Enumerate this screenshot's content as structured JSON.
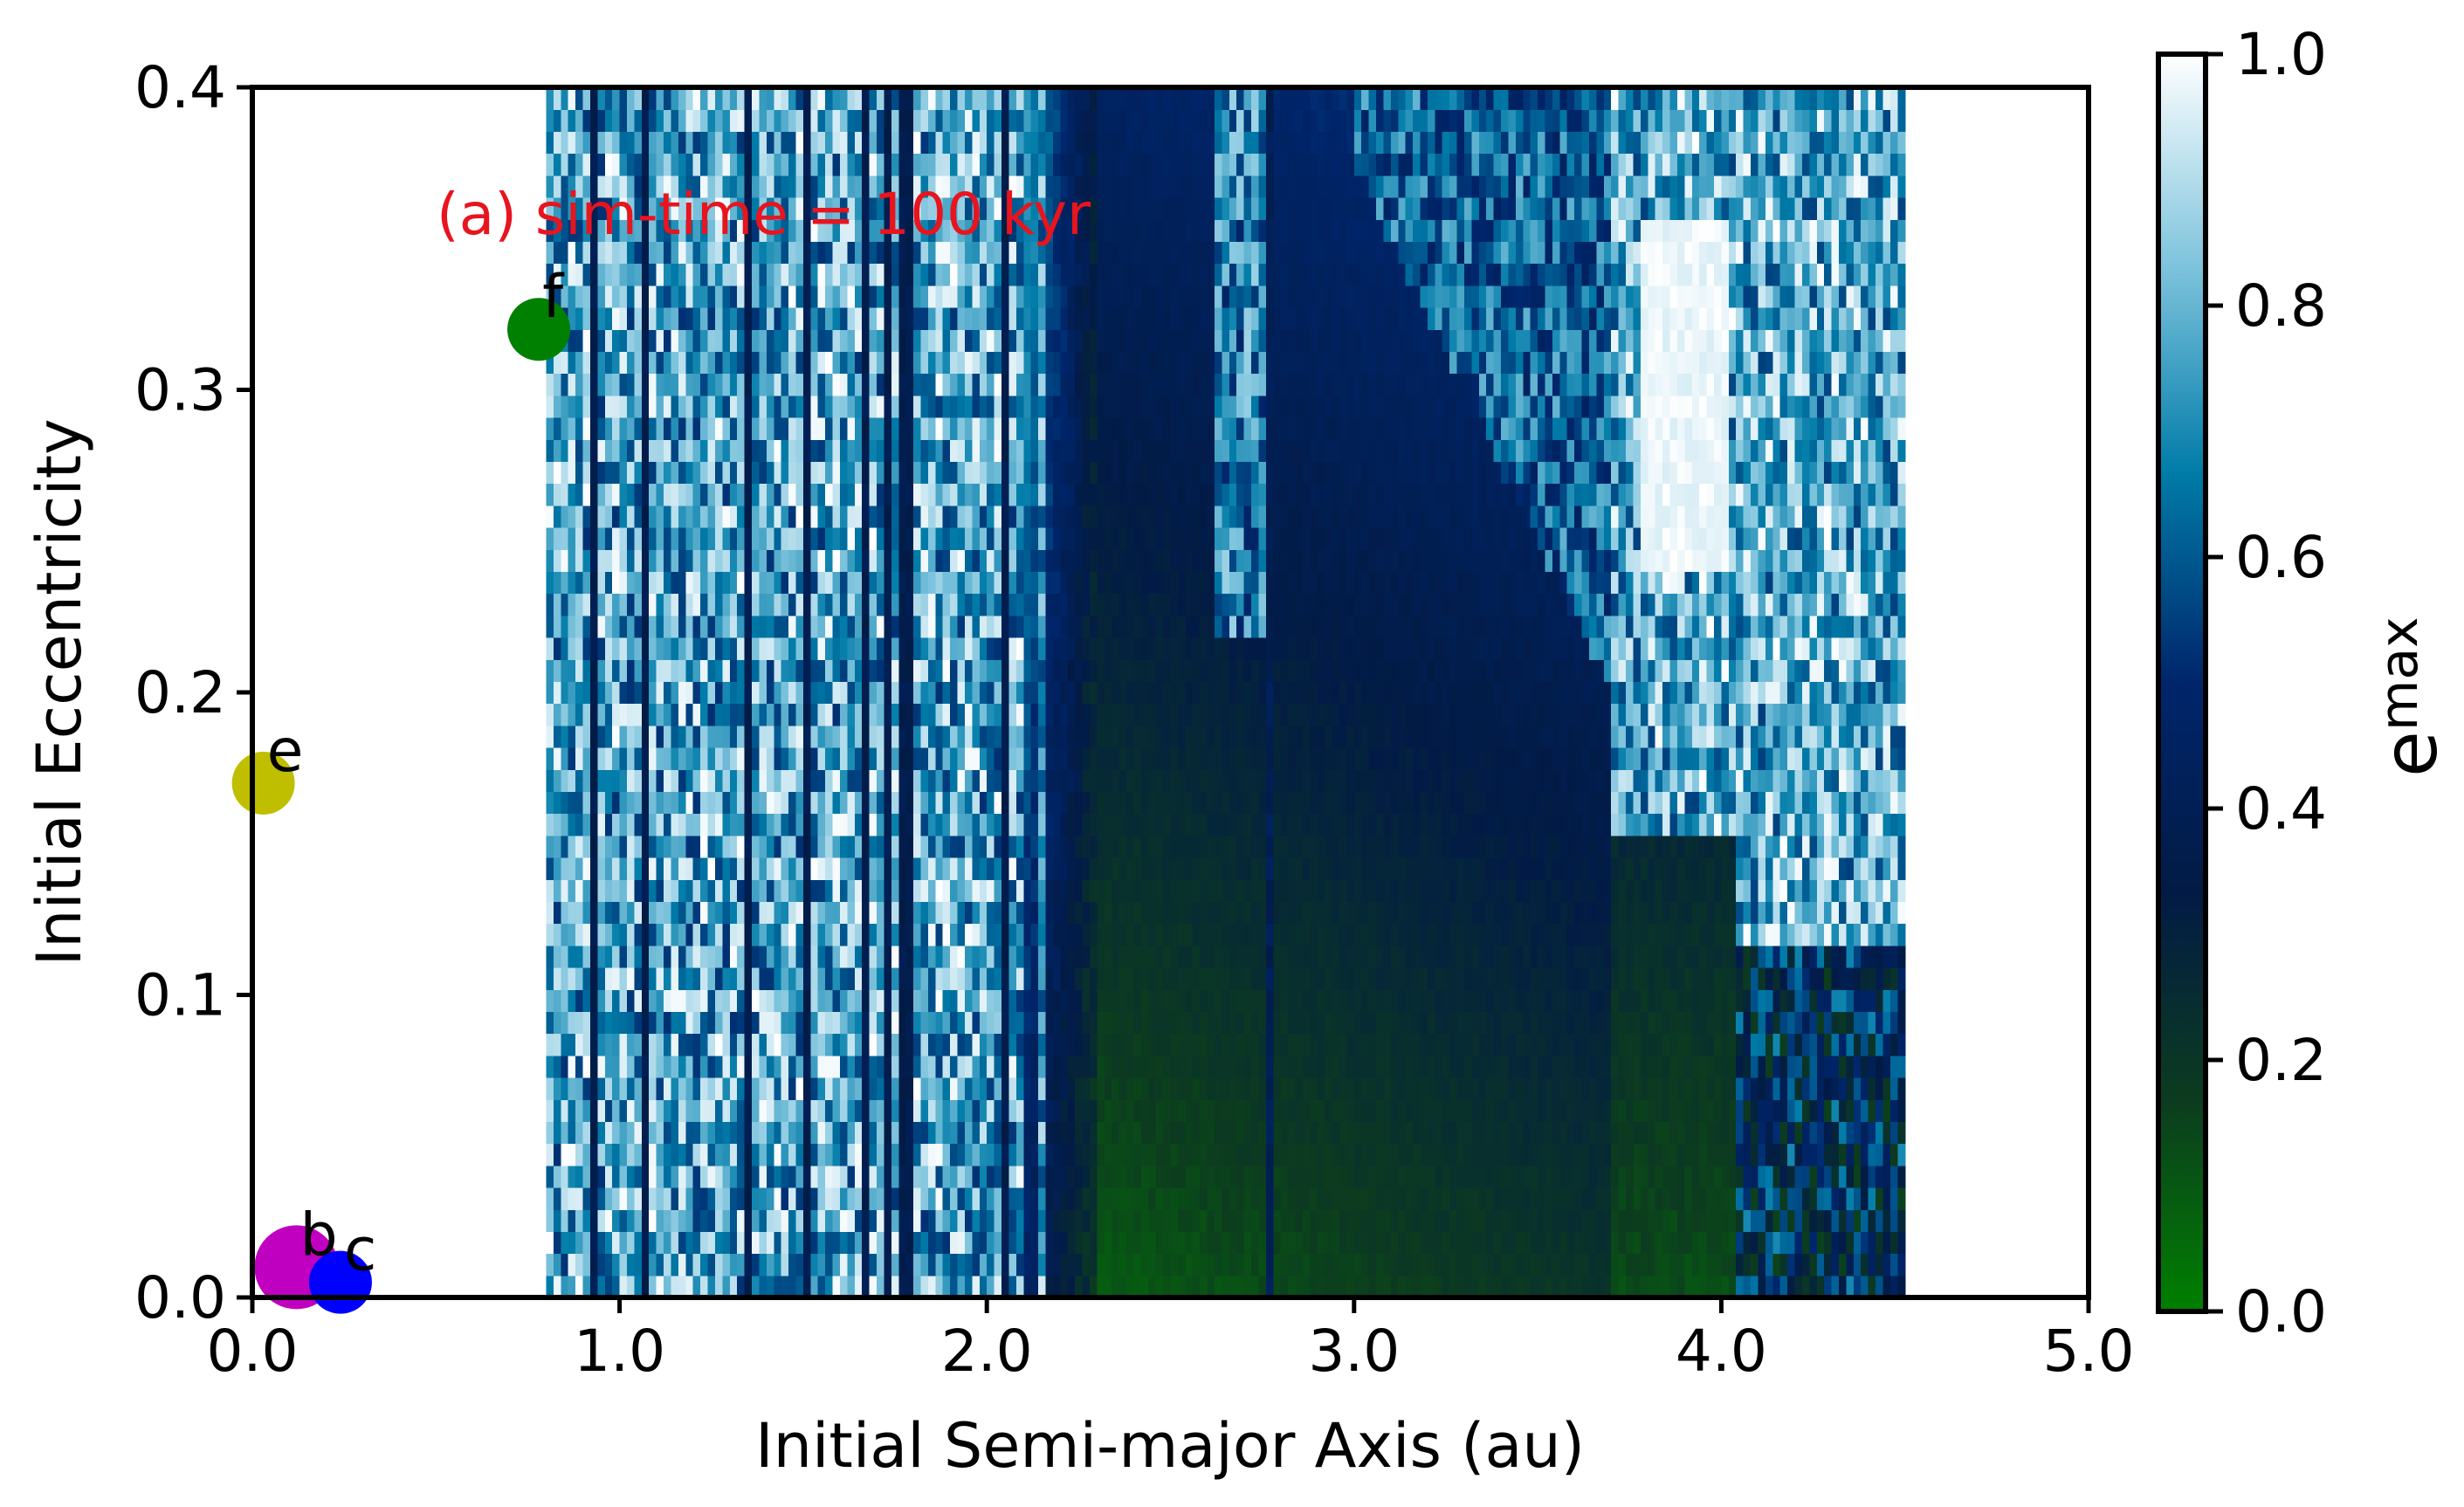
{
  "chart_data": {
    "type": "heatmap",
    "annotation": "(a) sim-time = 100 kyr",
    "xlabel": "Initial Semi-major Axis (au)",
    "ylabel": "Initial Eccentricity",
    "xlim": [
      0.0,
      5.0
    ],
    "ylim": [
      0.0,
      0.4
    ],
    "xticks": [
      "0.0",
      "1.0",
      "2.0",
      "3.0",
      "4.0",
      "5.0"
    ],
    "xtick_values": [
      0,
      1,
      2,
      3,
      4,
      5
    ],
    "yticks": [
      "0.0",
      "0.1",
      "0.2",
      "0.3",
      "0.4"
    ],
    "ytick_values": [
      0,
      0.1,
      0.2,
      0.3,
      0.4
    ],
    "colorbar": {
      "label": "e",
      "label_sub": "max",
      "range": [
        0.0,
        1.0
      ],
      "ticks": [
        "0.0",
        "0.2",
        "0.4",
        "0.6",
        "0.8",
        "1.0"
      ],
      "tick_values": [
        0,
        0.2,
        0.4,
        0.6,
        0.8,
        1.0
      ],
      "colormap": [
        "#008000",
        "#0c3c1f",
        "#021b45",
        "#00256b",
        "#007ba8",
        "#7fc4dd",
        "#ffffff"
      ]
    },
    "grid_extent": {
      "a_min": 0.8,
      "a_max": 4.5,
      "e_min": 0.0,
      "e_max": 0.4
    },
    "regions": [
      {
        "a": [
          0.8,
          2.1
        ],
        "e": [
          0.0,
          0.4
        ],
        "emax_typical": 0.75
      },
      {
        "a": [
          2.1,
          2.3
        ],
        "e": [
          0.0,
          0.4
        ],
        "emax_typical": 0.5
      },
      {
        "a": [
          2.3,
          3.7
        ],
        "e": [
          0.0,
          0.4
        ],
        "emax_typical": 0.2
      },
      {
        "a": [
          3.7,
          4.5
        ],
        "e": [
          0.0,
          0.15
        ],
        "emax_typical": 0.15
      },
      {
        "a": [
          3.7,
          4.5
        ],
        "e": [
          0.15,
          0.4
        ],
        "emax_typical": 0.85
      }
    ],
    "planets": [
      {
        "name": "b",
        "a": 0.12,
        "e": 0.01,
        "color": "#c000c0",
        "size": "large"
      },
      {
        "name": "c",
        "a": 0.24,
        "e": 0.005,
        "color": "#0000ff",
        "size": "medium"
      },
      {
        "name": "e",
        "a": 0.03,
        "e": 0.17,
        "color": "#bfbf00",
        "size": "medium"
      },
      {
        "name": "f",
        "a": 0.78,
        "e": 0.32,
        "color": "#008000",
        "size": "medium"
      }
    ]
  }
}
